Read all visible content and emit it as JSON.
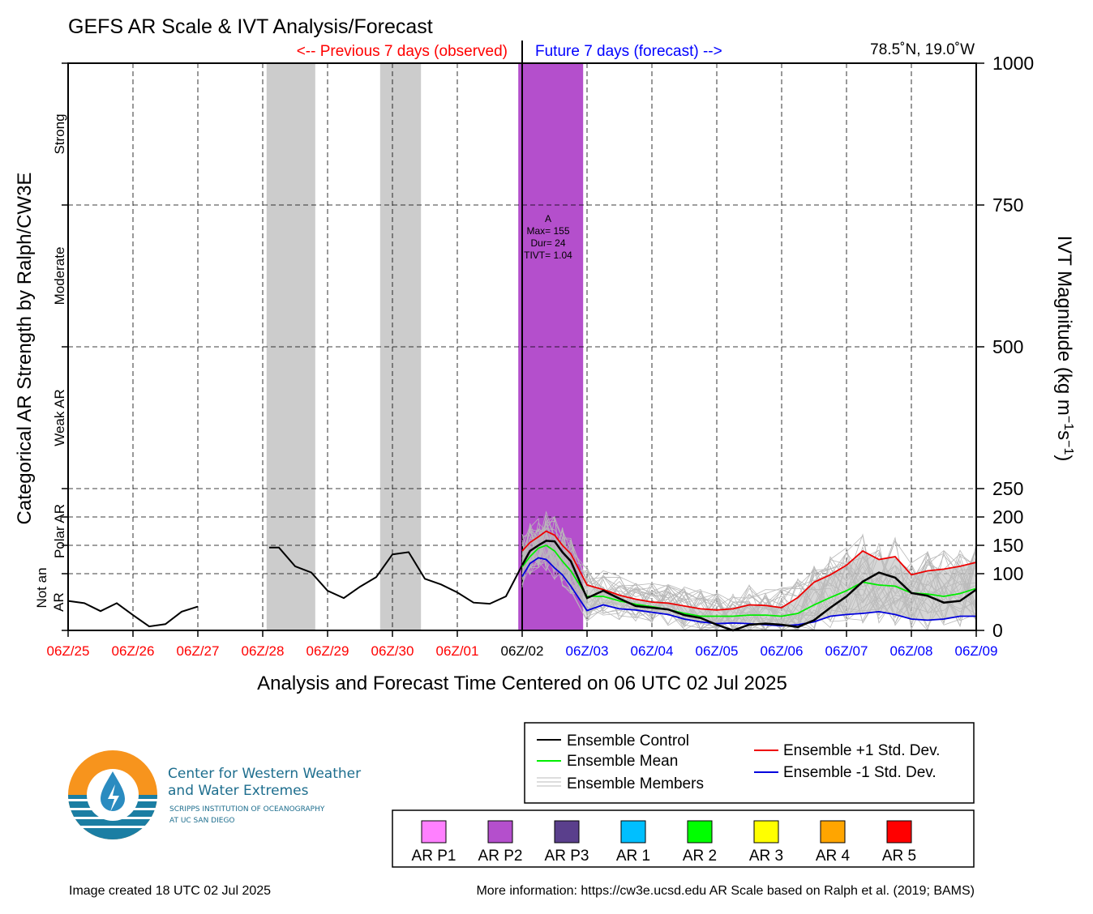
{
  "title": "GEFS AR Scale & IVT Analysis/Forecast",
  "previous_label": "<-- Previous 7 days (observed)",
  "future_label": "Future 7 days (forecast) -->",
  "location": "78.5˚N, 19.0˚W",
  "xlabel": "Analysis and Forecast Time Centered on 06 UTC 02 Jul 2025",
  "ylabel_left": "Categorical AR Strength by Ralph/CW3E",
  "ylabel_right_main": "IVT Magnitude (kg m",
  "ylabel_right_sup1": "−1",
  "ylabel_right_mid": "s",
  "ylabel_right_sup2": "−1",
  "ylabel_right_end": ")",
  "category_labels": [
    {
      "text": "Strong",
      "value": 875
    },
    {
      "text": "Moderate",
      "value": 625
    },
    {
      "text": "Weak AR",
      "value": 375
    },
    {
      "text": "Polar AR",
      "value": 175
    },
    {
      "text": "Not an",
      "value": 75,
      "col": 0
    },
    {
      "text": "AR",
      "value": 50,
      "col": 1
    }
  ],
  "annotation": {
    "lines": [
      "A",
      "Max= 155",
      "Dur= 24",
      "TIVT= 1.04"
    ],
    "x": 7.4,
    "y": 720
  },
  "footer_left": "Image created 18 UTC 02 Jul 2025",
  "footer_right": "More information: https://cw3e.ucsd.edu AR Scale based on Ralph et al. (2019; BAMS)",
  "logo": {
    "line1": "Center for Western Weather",
    "line2": "and Water Extremes",
    "line3": "SCRIPPS INSTITUTION OF OCEANOGRAPHY",
    "line4": "AT UC SAN DIEGO"
  },
  "legend": {
    "items": [
      {
        "label": "Ensemble Control",
        "color": "#000000"
      },
      {
        "label": "Ensemble Mean",
        "color": "#00ee00"
      },
      {
        "label": "Ensemble Members",
        "color": "#bbbbbb"
      },
      {
        "label": "Ensemble +1 Std. Dev.",
        "color": "#ee0000"
      },
      {
        "label": "Ensemble -1 Std. Dev.",
        "color": "#0000dd"
      }
    ],
    "scale": [
      {
        "label": "AR P1",
        "color": "#ff80ff"
      },
      {
        "label": "AR P2",
        "color": "#b44fcc"
      },
      {
        "label": "AR P3",
        "color": "#5a3f8c"
      },
      {
        "label": "AR 1",
        "color": "#00bfff"
      },
      {
        "label": "AR 2",
        "color": "#00ff00"
      },
      {
        "label": "AR 3",
        "color": "#ffff00"
      },
      {
        "label": "AR 4",
        "color": "#ffa500"
      },
      {
        "label": "AR 5",
        "color": "#ff0000"
      }
    ]
  },
  "chart_data": {
    "type": "line",
    "xlim": [
      0,
      14
    ],
    "ylim": [
      0,
      1000
    ],
    "x_ticks": [
      {
        "label": "06Z/25",
        "x": 0,
        "color": "#ff0000"
      },
      {
        "label": "06Z/26",
        "x": 1,
        "color": "#ff0000"
      },
      {
        "label": "06Z/27",
        "x": 2,
        "color": "#ff0000"
      },
      {
        "label": "06Z/28",
        "x": 3,
        "color": "#ff0000"
      },
      {
        "label": "06Z/29",
        "x": 4,
        "color": "#ff0000"
      },
      {
        "label": "06Z/30",
        "x": 5,
        "color": "#ff0000"
      },
      {
        "label": "06Z/01",
        "x": 6,
        "color": "#ff0000"
      },
      {
        "label": "06Z/02",
        "x": 7,
        "color": "#000000"
      },
      {
        "label": "06Z/03",
        "x": 8,
        "color": "#0000ff"
      },
      {
        "label": "06Z/04",
        "x": 9,
        "color": "#0000ff"
      },
      {
        "label": "06Z/05",
        "x": 10,
        "color": "#0000ff"
      },
      {
        "label": "06Z/06",
        "x": 11,
        "color": "#0000ff"
      },
      {
        "label": "06Z/07",
        "x": 12,
        "color": "#0000ff"
      },
      {
        "label": "06Z/08",
        "x": 13,
        "color": "#0000ff"
      },
      {
        "label": "06Z/09",
        "x": 14,
        "color": "#0000ff"
      }
    ],
    "y_ticks": [
      {
        "value": 0,
        "label": "0"
      },
      {
        "value": 100,
        "label": "100"
      },
      {
        "value": 150,
        "label": "150"
      },
      {
        "value": 200,
        "label": "200"
      },
      {
        "value": 250,
        "label": "250"
      },
      {
        "value": 500,
        "label": "500"
      },
      {
        "value": 750,
        "label": "750"
      },
      {
        "value": 1000,
        "label": "1000"
      }
    ],
    "h_gridlines": [
      100,
      150,
      200,
      250,
      500,
      750
    ],
    "v_gridlines": [
      1,
      2,
      3,
      4,
      5,
      6,
      8,
      9,
      10,
      11,
      12,
      13
    ],
    "center_x": 7,
    "shaded_periods": [
      {
        "x0": 3.06,
        "x1": 3.81,
        "color": "#cccccc"
      },
      {
        "x0": 4.81,
        "x1": 5.44,
        "color": "#cccccc"
      },
      {
        "x0": 6.94,
        "x1": 7.94,
        "color": "#b44fcc"
      }
    ],
    "observed": [
      {
        "x": [
          0,
          0.25,
          0.5,
          0.75,
          1.0,
          1.25,
          1.5,
          1.75,
          2.0
        ],
        "y": [
          52,
          48,
          34,
          48,
          27,
          7,
          11,
          33,
          42
        ]
      },
      {
        "x": [
          3.1,
          3.25,
          3.5,
          3.75,
          4.0,
          4.25,
          4.5,
          4.75,
          5.0,
          5.25,
          5.5,
          5.75,
          6.0,
          6.25,
          6.5,
          6.75,
          7.0
        ],
        "y": [
          146,
          146,
          113,
          102,
          70,
          57,
          77,
          94,
          134,
          138,
          91,
          81,
          67,
          49,
          47,
          60,
          115
        ]
      }
    ],
    "series": [
      {
        "name": "Ensemble Control",
        "color": "#000000",
        "x": [
          7.0,
          7.12,
          7.25,
          7.37,
          7.5,
          7.62,
          7.75,
          8.0,
          8.25,
          8.5,
          8.75,
          9.0,
          9.25,
          9.5,
          9.75,
          10.0,
          10.25,
          10.5,
          10.75,
          11.0,
          11.25,
          11.5,
          11.75,
          12.0,
          12.25,
          12.5,
          12.75,
          13.0,
          13.25,
          13.5,
          13.75,
          14.0
        ],
        "y": [
          115,
          140,
          150,
          158,
          157,
          138,
          122,
          57,
          70,
          56,
          43,
          40,
          37,
          27,
          22,
          10,
          0,
          10,
          12,
          10,
          6,
          18,
          40,
          60,
          86,
          102,
          93,
          66,
          61,
          49,
          52,
          72
        ]
      },
      {
        "name": "Ensemble Mean",
        "color": "#00ee00",
        "x": [
          7.0,
          7.12,
          7.25,
          7.37,
          7.5,
          7.62,
          7.75,
          8.0,
          8.25,
          8.5,
          8.75,
          9.0,
          9.25,
          9.5,
          9.75,
          10.0,
          10.25,
          10.5,
          10.75,
          11.0,
          11.25,
          11.5,
          11.75,
          12.0,
          12.25,
          12.5,
          12.75,
          13.0,
          13.25,
          13.5,
          13.75,
          14.0
        ],
        "y": [
          112,
          130,
          145,
          150,
          140,
          122,
          105,
          60,
          60,
          52,
          46,
          42,
          37,
          30,
          25,
          25,
          25,
          27,
          27,
          25,
          30,
          45,
          58,
          70,
          85,
          80,
          78,
          66,
          64,
          60,
          65,
          74
        ]
      },
      {
        "name": "Ensemble +1 Std. Dev.",
        "color": "#ee0000",
        "x": [
          7.0,
          7.12,
          7.25,
          7.37,
          7.5,
          7.62,
          7.75,
          8.0,
          8.25,
          8.5,
          8.75,
          9.0,
          9.25,
          9.5,
          9.75,
          10.0,
          10.25,
          10.5,
          10.75,
          11.0,
          11.25,
          11.5,
          11.75,
          12.0,
          12.25,
          12.5,
          12.75,
          13.0,
          13.25,
          13.5,
          13.75,
          14.0
        ],
        "y": [
          140,
          155,
          165,
          175,
          168,
          150,
          135,
          80,
          72,
          62,
          55,
          50,
          48,
          43,
          38,
          36,
          38,
          45,
          44,
          40,
          58,
          85,
          98,
          115,
          140,
          125,
          130,
          98,
          105,
          108,
          113,
          120
        ]
      },
      {
        "name": "Ensemble -1 Std. Dev.",
        "color": "#0000dd",
        "x": [
          7.0,
          7.12,
          7.25,
          7.37,
          7.5,
          7.62,
          7.75,
          8.0,
          8.25,
          8.5,
          8.75,
          9.0,
          9.25,
          9.5,
          9.75,
          10.0,
          10.25,
          10.5,
          10.75,
          11.0,
          11.25,
          11.5,
          11.75,
          12.0,
          12.25,
          12.5,
          12.75,
          13.0,
          13.25,
          13.5,
          13.75,
          14.0
        ],
        "y": [
          95,
          118,
          128,
          125,
          110,
          98,
          78,
          35,
          45,
          38,
          36,
          32,
          28,
          20,
          15,
          12,
          13,
          12,
          10,
          8,
          10,
          15,
          25,
          28,
          30,
          33,
          28,
          20,
          18,
          20,
          25,
          25
        ]
      }
    ]
  }
}
